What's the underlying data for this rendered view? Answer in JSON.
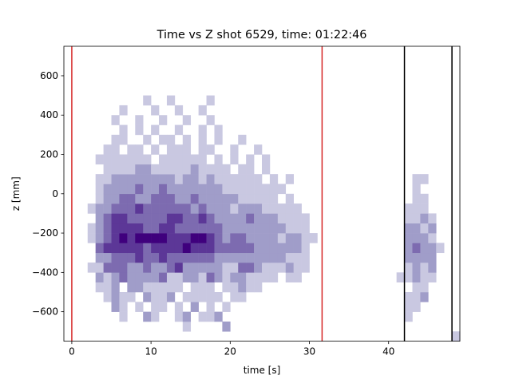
{
  "chart_data": {
    "type": "heatmap",
    "title": "Time vs Z shot 6529, time: 01:22:46",
    "xlabel": "time [s]",
    "ylabel": "z [mm]",
    "xlim": [
      -1,
      49
    ],
    "ylim": [
      -750,
      750
    ],
    "xticks": [
      0,
      10,
      20,
      30,
      40
    ],
    "yticks": [
      -600,
      -400,
      -200,
      0,
      200,
      400,
      600
    ],
    "xtick_labels": [
      "0",
      "10",
      "20",
      "30",
      "40"
    ],
    "ytick_labels": [
      "−600",
      "−400",
      "−200",
      "0",
      "200",
      "400",
      "600"
    ],
    "grid": false,
    "colormap": "Purples",
    "x_bin_edges": [
      -1,
      49,
      50
    ],
    "z_bin_edges": [
      -750,
      750,
      30
    ],
    "vertical_lines": [
      {
        "x": 0.0,
        "color": "#d62728"
      },
      {
        "x": 31.6,
        "color": "#d62728"
      },
      {
        "x": 42.0,
        "color": "#000000"
      },
      {
        "x": 48.0,
        "color": "#000000"
      }
    ],
    "counts": [
      [
        0,
        0,
        0,
        0,
        0,
        0,
        0,
        0,
        0,
        0,
        0,
        0,
        0,
        0,
        0,
        0,
        0,
        0,
        0,
        0,
        0,
        0,
        0,
        0,
        0,
        0,
        0,
        0,
        0,
        0,
        0,
        0,
        0,
        0,
        0,
        0,
        0,
        0,
        0,
        0,
        0,
        0,
        0,
        0,
        0,
        0,
        0,
        0,
        0,
        1
      ],
      [
        0,
        0,
        0,
        0,
        0,
        0,
        0,
        0,
        0,
        0,
        0,
        0,
        0,
        0,
        0,
        1,
        0,
        0,
        0,
        0,
        2,
        0,
        0,
        0,
        0,
        0,
        0,
        0,
        0,
        0,
        0,
        0,
        0,
        0,
        0,
        0,
        0,
        0,
        0,
        0,
        0,
        0,
        0,
        0,
        0,
        0,
        0,
        0,
        0,
        0
      ],
      [
        0,
        0,
        0,
        0,
        0,
        0,
        0,
        1,
        0,
        0,
        2,
        1,
        0,
        0,
        1,
        2,
        0,
        1,
        1,
        2,
        0,
        0,
        0,
        0,
        0,
        0,
        0,
        0,
        0,
        0,
        0,
        0,
        0,
        0,
        0,
        0,
        0,
        0,
        0,
        0,
        0,
        0,
        0,
        1,
        0,
        0,
        0,
        0,
        0,
        0
      ],
      [
        0,
        0,
        0,
        0,
        0,
        0,
        2,
        1,
        0,
        1,
        0,
        1,
        1,
        0,
        1,
        0,
        2,
        0,
        1,
        0,
        1,
        0,
        0,
        0,
        0,
        0,
        0,
        0,
        0,
        0,
        0,
        0,
        0,
        0,
        0,
        0,
        0,
        0,
        0,
        0,
        0,
        0,
        0,
        1,
        1,
        0,
        0,
        0,
        0,
        0
      ],
      [
        0,
        0,
        0,
        0,
        0,
        1,
        2,
        1,
        1,
        0,
        2,
        1,
        1,
        2,
        0,
        1,
        1,
        1,
        1,
        1,
        0,
        1,
        1,
        0,
        0,
        0,
        0,
        0,
        0,
        0,
        0,
        0,
        0,
        0,
        0,
        0,
        0,
        0,
        0,
        0,
        0,
        0,
        0,
        1,
        1,
        2,
        0,
        0,
        0,
        0
      ],
      [
        0,
        0,
        0,
        0,
        1,
        1,
        2,
        0,
        2,
        2,
        1,
        1,
        1,
        1,
        1,
        0,
        1,
        1,
        1,
        0,
        1,
        1,
        2,
        1,
        1,
        0,
        0,
        0,
        0,
        0,
        0,
        0,
        0,
        0,
        0,
        0,
        0,
        0,
        0,
        0,
        0,
        0,
        0,
        0,
        1,
        1,
        0,
        0,
        0,
        0
      ],
      [
        0,
        0,
        0,
        0,
        2,
        1,
        2,
        3,
        2,
        2,
        2,
        2,
        3,
        1,
        1,
        2,
        2,
        1,
        3,
        2,
        1,
        2,
        2,
        1,
        1,
        1,
        1,
        0,
        1,
        1,
        0,
        0,
        0,
        0,
        0,
        0,
        0,
        0,
        0,
        0,
        0,
        0,
        1,
        1,
        2,
        1,
        1,
        0,
        0,
        0
      ],
      [
        0,
        0,
        0,
        1,
        1,
        3,
        3,
        3,
        2,
        2,
        3,
        2,
        2,
        3,
        4,
        2,
        2,
        2,
        2,
        2,
        1,
        1,
        3,
        3,
        2,
        1,
        1,
        1,
        2,
        1,
        1,
        0,
        0,
        0,
        0,
        0,
        0,
        0,
        0,
        0,
        0,
        0,
        0,
        1,
        2,
        1,
        2,
        0,
        0,
        0
      ],
      [
        0,
        0,
        0,
        0,
        2,
        2,
        3,
        3,
        3,
        4,
        3,
        3,
        4,
        3,
        3,
        3,
        3,
        3,
        3,
        2,
        2,
        2,
        2,
        2,
        2,
        2,
        2,
        2,
        1,
        1,
        1,
        0,
        0,
        0,
        0,
        0,
        0,
        0,
        0,
        0,
        0,
        0,
        0,
        2,
        2,
        2,
        2,
        0,
        0,
        0
      ],
      [
        0,
        0,
        0,
        0,
        3,
        4,
        4,
        4,
        4,
        4,
        3,
        4,
        4,
        4,
        4,
        5,
        4,
        4,
        4,
        3,
        3,
        3,
        3,
        3,
        2,
        2,
        2,
        2,
        2,
        2,
        1,
        0,
        0,
        0,
        0,
        0,
        0,
        0,
        0,
        0,
        0,
        0,
        0,
        2,
        3,
        2,
        2,
        1,
        0,
        0
      ],
      [
        0,
        0,
        0,
        1,
        2,
        3,
        4,
        5,
        4,
        5,
        5,
        5,
        5,
        4,
        4,
        4,
        5,
        5,
        4,
        3,
        2,
        3,
        3,
        2,
        2,
        2,
        2,
        1,
        2,
        2,
        1,
        1,
        0,
        0,
        0,
        0,
        0,
        0,
        0,
        0,
        0,
        0,
        0,
        2,
        2,
        2,
        1,
        0,
        0,
        0
      ],
      [
        0,
        0,
        0,
        1,
        2,
        3,
        4,
        4,
        4,
        4,
        3,
        3,
        4,
        4,
        3,
        3,
        3,
        3,
        3,
        3,
        2,
        2,
        2,
        2,
        2,
        2,
        2,
        2,
        1,
        1,
        1,
        0,
        0,
        0,
        0,
        0,
        0,
        0,
        0,
        0,
        0,
        0,
        0,
        2,
        2,
        1,
        2,
        0,
        0,
        0
      ],
      [
        0,
        0,
        0,
        0,
        2,
        3,
        4,
        4,
        3,
        3,
        3,
        3,
        3,
        4,
        4,
        3,
        3,
        4,
        3,
        2,
        2,
        2,
        2,
        3,
        2,
        2,
        2,
        1,
        1,
        1,
        1,
        0,
        0,
        0,
        0,
        0,
        0,
        0,
        0,
        0,
        0,
        0,
        0,
        1,
        1,
        2,
        1,
        0,
        0,
        0
      ],
      [
        0,
        0,
        0,
        1,
        2,
        2,
        3,
        3,
        3,
        4,
        3,
        3,
        3,
        3,
        3,
        3,
        2,
        3,
        2,
        2,
        2,
        1,
        2,
        2,
        2,
        1,
        1,
        1,
        1,
        1,
        0,
        0,
        0,
        0,
        0,
        0,
        0,
        0,
        0,
        0,
        0,
        0,
        0,
        1,
        1,
        1,
        0,
        0,
        0,
        0
      ],
      [
        0,
        0,
        0,
        0,
        1,
        2,
        2,
        3,
        3,
        2,
        2,
        3,
        3,
        3,
        2,
        2,
        3,
        2,
        2,
        2,
        2,
        2,
        1,
        1,
        1,
        1,
        1,
        0,
        1,
        0,
        0,
        0,
        0,
        0,
        0,
        0,
        0,
        0,
        0,
        0,
        0,
        0,
        0,
        0,
        1,
        1,
        0,
        0,
        0,
        0
      ],
      [
        0,
        0,
        0,
        0,
        1,
        2,
        2,
        2,
        2,
        3,
        2,
        2,
        3,
        2,
        2,
        2,
        2,
        2,
        2,
        2,
        1,
        1,
        1,
        1,
        1,
        1,
        1,
        1,
        0,
        0,
        0,
        0,
        0,
        0,
        0,
        0,
        0,
        0,
        0,
        0,
        0,
        0,
        0,
        0,
        1,
        0,
        0,
        0,
        0,
        0
      ],
      [
        0,
        0,
        0,
        0,
        1,
        1,
        2,
        2,
        2,
        2,
        2,
        2,
        2,
        2,
        1,
        2,
        2,
        1,
        2,
        1,
        1,
        1,
        1,
        1,
        1,
        0,
        1,
        0,
        1,
        0,
        0,
        0,
        0,
        0,
        0,
        0,
        0,
        0,
        0,
        0,
        0,
        0,
        0,
        0,
        1,
        1,
        0,
        0,
        0,
        0
      ],
      [
        0,
        0,
        0,
        0,
        0,
        1,
        1,
        1,
        1,
        2,
        2,
        1,
        1,
        1,
        1,
        1,
        2,
        1,
        1,
        1,
        1,
        0,
        1,
        1,
        0,
        1,
        0,
        0,
        0,
        0,
        0,
        0,
        0,
        0,
        0,
        0,
        0,
        0,
        0,
        0,
        0,
        0,
        0,
        0,
        0,
        0,
        0,
        0,
        0,
        0
      ],
      [
        0,
        0,
        0,
        0,
        1,
        1,
        1,
        1,
        1,
        1,
        1,
        0,
        1,
        1,
        1,
        1,
        1,
        1,
        0,
        1,
        0,
        1,
        0,
        1,
        0,
        1,
        0,
        0,
        0,
        0,
        0,
        0,
        0,
        0,
        0,
        0,
        0,
        0,
        0,
        0,
        0,
        0,
        0,
        0,
        0,
        0,
        0,
        0,
        0,
        0
      ],
      [
        0,
        0,
        0,
        0,
        0,
        1,
        1,
        0,
        1,
        1,
        0,
        1,
        0,
        1,
        1,
        1,
        0,
        1,
        1,
        0,
        0,
        1,
        0,
        0,
        1,
        0,
        0,
        0,
        0,
        0,
        0,
        0,
        0,
        0,
        0,
        0,
        0,
        0,
        0,
        0,
        0,
        0,
        0,
        0,
        0,
        0,
        0,
        0,
        0,
        0
      ],
      [
        0,
        0,
        0,
        0,
        0,
        0,
        1,
        1,
        0,
        0,
        1,
        0,
        1,
        1,
        0,
        1,
        0,
        1,
        0,
        1,
        0,
        0,
        1,
        0,
        0,
        0,
        0,
        0,
        0,
        0,
        0,
        0,
        0,
        0,
        0,
        0,
        0,
        0,
        0,
        0,
        0,
        0,
        0,
        0,
        0,
        0,
        0,
        0,
        0,
        0
      ],
      [
        0,
        0,
        0,
        0,
        0,
        0,
        0,
        1,
        0,
        1,
        0,
        1,
        0,
        0,
        1,
        0,
        0,
        1,
        0,
        1,
        0,
        0,
        0,
        0,
        0,
        0,
        0,
        0,
        0,
        0,
        0,
        0,
        0,
        0,
        0,
        0,
        0,
        0,
        0,
        0,
        0,
        0,
        0,
        0,
        0,
        0,
        0,
        0,
        0,
        0
      ],
      [
        0,
        0,
        0,
        0,
        0,
        0,
        1,
        0,
        0,
        1,
        0,
        0,
        1,
        0,
        0,
        1,
        0,
        0,
        1,
        0,
        0,
        0,
        0,
        0,
        0,
        0,
        0,
        0,
        0,
        0,
        0,
        0,
        0,
        0,
        0,
        0,
        0,
        0,
        0,
        0,
        0,
        0,
        0,
        0,
        0,
        0,
        0,
        0,
        0,
        0
      ],
      [
        0,
        0,
        0,
        0,
        0,
        0,
        0,
        1,
        0,
        0,
        0,
        1,
        0,
        0,
        1,
        0,
        0,
        1,
        0,
        0,
        0,
        0,
        0,
        0,
        0,
        0,
        0,
        0,
        0,
        0,
        0,
        0,
        0,
        0,
        0,
        0,
        0,
        0,
        0,
        0,
        0,
        0,
        0,
        0,
        0,
        0,
        0,
        0,
        0,
        0
      ],
      [
        0,
        0,
        0,
        0,
        0,
        0,
        0,
        0,
        0,
        0,
        1,
        0,
        0,
        1,
        0,
        0,
        0,
        0,
        1,
        0,
        0,
        0,
        0,
        0,
        0,
        0,
        0,
        0,
        0,
        0,
        0,
        0,
        0,
        0,
        0,
        0,
        0,
        0,
        0,
        0,
        0,
        0,
        0,
        0,
        0,
        0,
        0,
        0,
        0,
        0
      ],
      [
        0,
        0,
        0,
        0,
        0,
        0,
        0,
        0,
        0,
        0,
        0,
        0,
        0,
        0,
        0,
        0,
        0,
        0,
        0,
        0,
        0,
        0,
        0,
        0,
        0,
        0,
        0,
        0,
        0,
        0,
        0,
        0,
        0,
        0,
        0,
        0,
        0,
        0,
        0,
        0,
        0,
        0,
        0,
        0,
        0,
        0,
        0,
        0,
        0,
        0
      ],
      [
        0,
        0,
        0,
        0,
        0,
        0,
        0,
        0,
        0,
        0,
        0,
        0,
        0,
        0,
        0,
        0,
        0,
        0,
        0,
        0,
        0,
        0,
        0,
        0,
        0,
        0,
        0,
        0,
        0,
        0,
        0,
        0,
        0,
        0,
        0,
        0,
        0,
        0,
        0,
        0,
        0,
        0,
        0,
        0,
        0,
        0,
        0,
        0,
        0,
        0
      ],
      [
        0,
        0,
        0,
        0,
        0,
        0,
        0,
        0,
        0,
        0,
        0,
        0,
        0,
        0,
        0,
        0,
        0,
        0,
        0,
        0,
        0,
        0,
        0,
        0,
        0,
        0,
        0,
        0,
        0,
        0,
        0,
        0,
        0,
        0,
        0,
        0,
        0,
        0,
        0,
        0,
        0,
        0,
        0,
        0,
        0,
        0,
        0,
        0,
        0,
        0
      ],
      [
        0,
        0,
        0,
        0,
        0,
        0,
        0,
        0,
        0,
        0,
        0,
        0,
        0,
        0,
        0,
        0,
        0,
        0,
        0,
        0,
        0,
        0,
        0,
        0,
        0,
        0,
        0,
        0,
        0,
        0,
        0,
        0,
        0,
        0,
        0,
        0,
        0,
        0,
        0,
        0,
        0,
        0,
        0,
        0,
        0,
        0,
        0,
        0,
        0,
        0
      ],
      [
        0,
        0,
        0,
        0,
        0,
        0,
        0,
        0,
        0,
        0,
        0,
        0,
        0,
        0,
        0,
        0,
        0,
        0,
        0,
        0,
        0,
        0,
        0,
        0,
        0,
        0,
        0,
        0,
        0,
        0,
        0,
        0,
        0,
        0,
        0,
        0,
        0,
        0,
        0,
        0,
        0,
        0,
        0,
        0,
        0,
        0,
        0,
        0,
        0,
        0
      ]
    ],
    "max_count": 5
  }
}
